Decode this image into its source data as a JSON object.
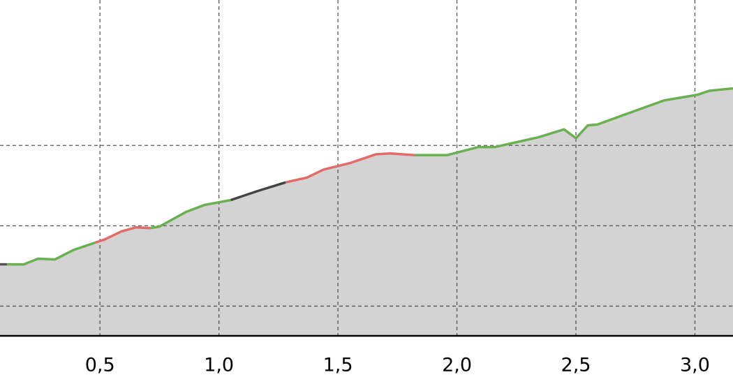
{
  "chart_data": {
    "type": "line",
    "fill": "#d3d3d3",
    "grid": true,
    "xlim": [
      0.08,
      3.16
    ],
    "ylim": [
      -0.37,
      3.81
    ],
    "xticks": [
      {
        "value": 0.5,
        "label": "0,5"
      },
      {
        "value": 1.0,
        "label": "1,0"
      },
      {
        "value": 1.5,
        "label": "1,5"
      },
      {
        "value": 2.0,
        "label": "2,0"
      },
      {
        "value": 2.5,
        "label": "2,5"
      },
      {
        "value": 3.0,
        "label": "3,0"
      }
    ],
    "yticks": [
      0,
      1,
      2
    ],
    "series": [
      {
        "color": "#555555",
        "x": [
          0.08,
          0.11
        ],
        "values": [
          0.52,
          0.52
        ]
      },
      {
        "color": "#6aaf50",
        "x": [
          0.11,
          0.18,
          0.24,
          0.31,
          0.39,
          0.48
        ],
        "values": [
          0.52,
          0.52,
          0.59,
          0.58,
          0.7,
          0.79
        ]
      },
      {
        "color": "#e46a6a",
        "x": [
          0.48,
          0.52,
          0.59,
          0.65,
          0.71
        ],
        "values": [
          0.79,
          0.83,
          0.93,
          0.98,
          0.97
        ]
      },
      {
        "color": "#6aaf50",
        "x": [
          0.71,
          0.75,
          0.86,
          0.94,
          1.05
        ],
        "values": [
          0.97,
          0.99,
          1.17,
          1.26,
          1.32
        ]
      },
      {
        "color": "#444444",
        "x": [
          1.05,
          1.16,
          1.28
        ],
        "values": [
          1.32,
          1.43,
          1.54
        ]
      },
      {
        "color": "#e46a6a",
        "x": [
          1.28,
          1.37,
          1.44,
          1.55,
          1.66,
          1.72,
          1.82
        ],
        "values": [
          1.54,
          1.6,
          1.7,
          1.78,
          1.89,
          1.9,
          1.88
        ]
      },
      {
        "color": "#6aaf50",
        "x": [
          1.82,
          1.96,
          2.09,
          2.16,
          2.34,
          2.45,
          2.5,
          2.55,
          2.59,
          2.72,
          2.87,
          3.01,
          3.06,
          3.16
        ],
        "values": [
          1.88,
          1.88,
          1.98,
          1.98,
          2.1,
          2.2,
          2.09,
          2.25,
          2.26,
          2.4,
          2.56,
          2.63,
          2.68,
          2.71
        ]
      }
    ]
  }
}
